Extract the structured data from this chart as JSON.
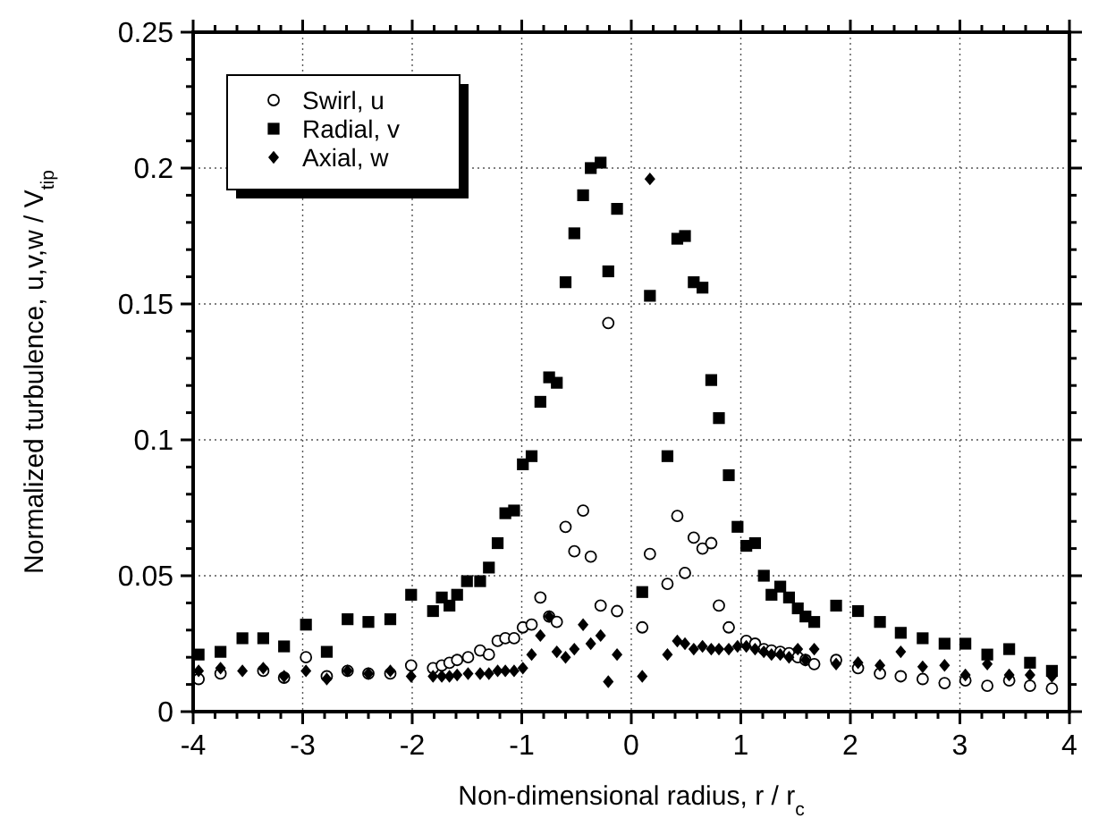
{
  "chart_data": {
    "type": "scatter",
    "xlabel": "Non-dimensional radius, r / r$_{c}$",
    "ylabel": "Normalized turbulence, u,v,w / V$_{tip}$",
    "xlim": [
      -4,
      4
    ],
    "ylim": [
      0,
      0.25
    ],
    "xticks": [
      -4,
      {
        "value": -3.8,
        "label": null
      },
      {
        "value": -3.6,
        "label": null
      },
      {
        "value": -3.4,
        "label": null
      },
      {
        "value": -3.2,
        "label": null
      },
      -3,
      {
        "value": -2.8,
        "label": null
      },
      {
        "value": -2.6,
        "label": null
      },
      {
        "value": -2.4,
        "label": null
      },
      {
        "value": -2.2,
        "label": null
      },
      -2,
      {
        "value": -1.8,
        "label": null
      },
      {
        "value": -1.6,
        "label": null
      },
      {
        "value": -1.4,
        "label": null
      },
      {
        "value": -1.2,
        "label": null
      },
      -1,
      {
        "value": -0.8,
        "label": null
      },
      {
        "value": -0.6,
        "label": null
      },
      {
        "value": -0.4,
        "label": null
      },
      {
        "value": -0.2,
        "label": null
      },
      0,
      {
        "value": 0.2,
        "label": null
      },
      {
        "value": 0.4,
        "label": null
      },
      {
        "value": 0.6,
        "label": null
      },
      {
        "value": 0.8,
        "label": null
      },
      1,
      {
        "value": 1.2,
        "label": null
      },
      {
        "value": 1.4,
        "label": null
      },
      {
        "value": 1.6,
        "label": null
      },
      {
        "value": 1.8,
        "label": null
      },
      2,
      {
        "value": 2.2,
        "label": null
      },
      {
        "value": 2.4,
        "label": null
      },
      {
        "value": 2.6,
        "label": null
      },
      {
        "value": 2.8,
        "label": null
      },
      3,
      {
        "value": 3.2,
        "label": null
      },
      {
        "value": 3.4,
        "label": null
      },
      {
        "value": 3.6,
        "label": null
      },
      {
        "value": 3.8,
        "label": null
      },
      4
    ],
    "yticks": [
      0,
      {
        "value": 0.01,
        "label": null
      },
      {
        "value": 0.02,
        "label": null
      },
      {
        "value": 0.03,
        "label": null
      },
      {
        "value": 0.04,
        "label": null
      },
      0.05,
      {
        "value": 0.06,
        "label": null
      },
      {
        "value": 0.07,
        "label": null
      },
      {
        "value": 0.08,
        "label": null
      },
      {
        "value": 0.09,
        "label": null
      },
      0.1,
      {
        "value": 0.11,
        "label": null
      },
      {
        "value": 0.12,
        "label": null
      },
      {
        "value": 0.13,
        "label": null
      },
      {
        "value": 0.14,
        "label": null
      },
      0.15,
      {
        "value": 0.16,
        "label": null
      },
      {
        "value": 0.17,
        "label": null
      },
      {
        "value": 0.18,
        "label": null
      },
      {
        "value": 0.19,
        "label": null
      },
      0.2,
      {
        "value": 0.21,
        "label": null
      },
      {
        "value": 0.22,
        "label": null
      },
      {
        "value": 0.23,
        "label": null
      },
      {
        "value": 0.24,
        "label": null
      },
      0.25
    ],
    "grid": true,
    "legend": "top left",
    "series": [
      {
        "name": "Swirl, u",
        "color": "#000000",
        "marker": "circle",
        "x": [
          -3.95,
          -3.75,
          -3.36,
          -3.17,
          -2.97,
          -2.78,
          -2.59,
          -2.4,
          -2.2,
          -2.01,
          -1.81,
          -1.73,
          -1.66,
          -1.59,
          -1.49,
          -1.38,
          -1.3,
          -1.22,
          -1.15,
          -1.07,
          -0.99,
          -0.91,
          -0.83,
          -0.75,
          -0.68,
          -0.6,
          -0.52,
          -0.44,
          -0.37,
          -0.28,
          -0.21,
          -0.13,
          0.1,
          0.17,
          0.33,
          0.42,
          0.49,
          0.57,
          0.65,
          0.73,
          0.8,
          0.89,
          1.05,
          1.13,
          1.21,
          1.28,
          1.36,
          1.44,
          1.52,
          1.59,
          1.67,
          1.87,
          2.07,
          2.27,
          2.46,
          2.66,
          2.86,
          3.05,
          3.25,
          3.45,
          3.64,
          3.84
        ],
        "values": [
          0.012,
          0.014,
          0.015,
          0.0125,
          0.02,
          0.013,
          0.015,
          0.014,
          0.014,
          0.017,
          0.016,
          0.017,
          0.018,
          0.019,
          0.02,
          0.0225,
          0.021,
          0.026,
          0.027,
          0.027,
          0.031,
          0.032,
          0.042,
          0.035,
          0.033,
          0.068,
          0.059,
          0.074,
          0.057,
          0.039,
          0.143,
          0.037,
          0.031,
          0.058,
          0.047,
          0.072,
          0.051,
          0.064,
          0.06,
          0.062,
          0.039,
          0.031,
          0.026,
          0.025,
          0.023,
          0.0225,
          0.022,
          0.0215,
          0.02,
          0.019,
          0.0175,
          0.019,
          0.016,
          0.014,
          0.013,
          0.012,
          0.0105,
          0.0115,
          0.0095,
          0.0115,
          0.0095,
          0.0085
        ]
      },
      {
        "name": "Radial, v",
        "color": "#000000",
        "marker": "square",
        "x": [
          -3.95,
          -3.75,
          -3.55,
          -3.36,
          -3.17,
          -2.97,
          -2.78,
          -2.59,
          -2.4,
          -2.2,
          -2.01,
          -1.81,
          -1.73,
          -1.66,
          -1.59,
          -1.5,
          -1.38,
          -1.3,
          -1.22,
          -1.15,
          -1.07,
          -0.99,
          -0.91,
          -0.83,
          -0.75,
          -0.68,
          -0.6,
          -0.52,
          -0.44,
          -0.37,
          -0.28,
          -0.21,
          -0.13,
          0.1,
          0.17,
          0.33,
          0.42,
          0.49,
          0.57,
          0.65,
          0.73,
          0.8,
          0.89,
          0.97,
          1.05,
          1.13,
          1.21,
          1.28,
          1.36,
          1.44,
          1.52,
          1.59,
          1.67,
          1.87,
          2.07,
          2.27,
          2.46,
          2.66,
          2.86,
          3.05,
          3.25,
          3.45,
          3.64,
          3.84
        ],
        "values": [
          0.021,
          0.022,
          0.027,
          0.027,
          0.024,
          0.032,
          0.022,
          0.034,
          0.033,
          0.034,
          0.043,
          0.037,
          0.042,
          0.039,
          0.043,
          0.048,
          0.048,
          0.053,
          0.062,
          0.073,
          0.074,
          0.091,
          0.094,
          0.114,
          0.123,
          0.121,
          0.158,
          0.176,
          0.19,
          0.2,
          0.202,
          0.162,
          0.185,
          0.044,
          0.153,
          0.094,
          0.174,
          0.175,
          0.158,
          0.156,
          0.122,
          0.108,
          0.087,
          0.068,
          0.061,
          0.062,
          0.05,
          0.043,
          0.046,
          0.042,
          0.038,
          0.035,
          0.033,
          0.039,
          0.037,
          0.033,
          0.029,
          0.027,
          0.025,
          0.025,
          0.021,
          0.023,
          0.018,
          0.015
        ]
      },
      {
        "name": "Axial, w",
        "color": "#000000",
        "marker": "diamond",
        "x": [
          -3.95,
          -3.75,
          -3.55,
          -3.36,
          -3.17,
          -2.97,
          -2.78,
          -2.59,
          -2.4,
          -2.2,
          -2.01,
          -1.81,
          -1.73,
          -1.66,
          -1.59,
          -1.49,
          -1.38,
          -1.3,
          -1.22,
          -1.15,
          -1.07,
          -0.99,
          -0.91,
          -0.83,
          -0.75,
          -0.68,
          -0.6,
          -0.52,
          -0.44,
          -0.37,
          -0.28,
          -0.21,
          -0.13,
          0.1,
          0.17,
          0.33,
          0.42,
          0.49,
          0.57,
          0.65,
          0.73,
          0.8,
          0.89,
          0.97,
          1.05,
          1.13,
          1.21,
          1.28,
          1.36,
          1.44,
          1.52,
          1.59,
          1.67,
          1.87,
          2.07,
          2.27,
          2.46,
          2.66,
          2.86,
          3.05,
          3.25,
          3.45,
          3.64,
          3.84
        ],
        "values": [
          0.015,
          0.016,
          0.015,
          0.016,
          0.013,
          0.015,
          0.012,
          0.015,
          0.014,
          0.015,
          0.013,
          0.013,
          0.013,
          0.013,
          0.0135,
          0.014,
          0.014,
          0.014,
          0.015,
          0.015,
          0.015,
          0.016,
          0.021,
          0.028,
          0.035,
          0.022,
          0.02,
          0.023,
          0.032,
          0.025,
          0.028,
          0.011,
          0.021,
          0.013,
          0.196,
          0.021,
          0.026,
          0.025,
          0.023,
          0.024,
          0.023,
          0.023,
          0.023,
          0.024,
          0.024,
          0.023,
          0.022,
          0.021,
          0.021,
          0.02,
          0.023,
          0.019,
          0.023,
          0.0175,
          0.018,
          0.017,
          0.022,
          0.0165,
          0.017,
          0.0135,
          0.0175,
          0.0135,
          0.0135,
          0.013
        ]
      }
    ]
  }
}
